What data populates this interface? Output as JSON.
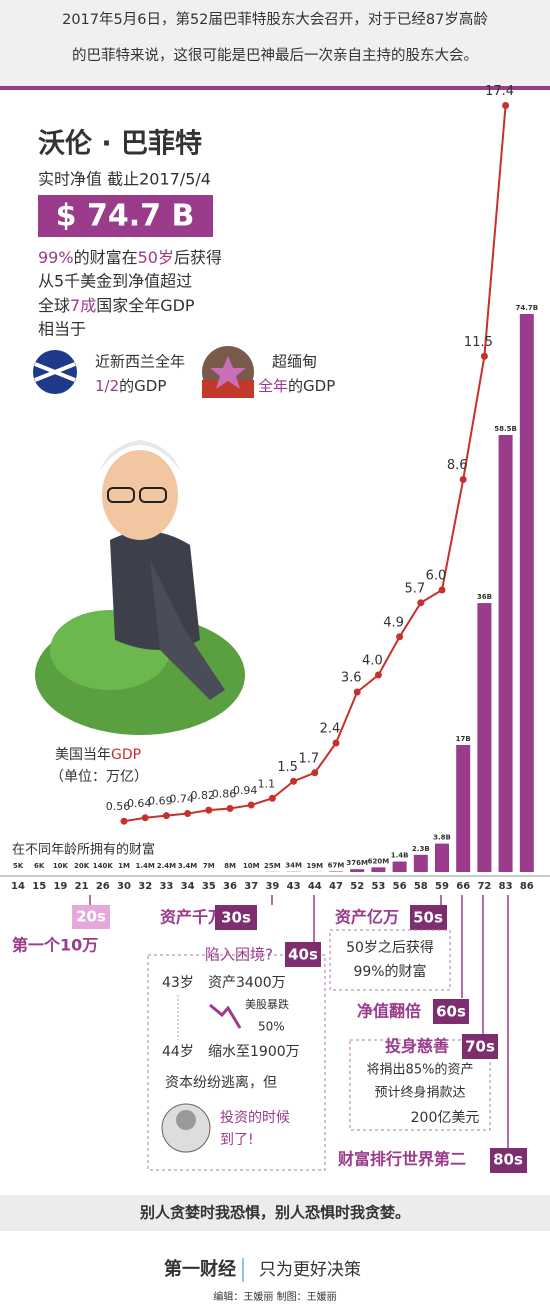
{
  "header": {
    "lines": [
      "2017年5月6日，第52届巴菲特股东大会召开，对于已经87岁高龄",
      "的巴菲特来说，这很可能是巴神最后一次亲自主持的股东大会。"
    ]
  },
  "profile": {
    "name": "沃伦 · 巴菲特",
    "subtitle": "实时净值 截止2017/5/4",
    "net_worth": "$ 74.7 B",
    "facts": [
      [
        "99%",
        "的财富在",
        "50岁",
        "后获得"
      ],
      [
        "从5千美金到净值超过"
      ],
      [
        "全球",
        "7成",
        "国家全年GDP"
      ],
      [
        "相当于"
      ]
    ],
    "comparisons": [
      {
        "line1": "近新西兰全年",
        "line2": [
          "1/2",
          "的GDP"
        ]
      },
      {
        "line1": "超缅甸",
        "line2": [
          "全年",
          "的GDP"
        ]
      }
    ]
  },
  "chart_data": {
    "type": "bar",
    "gdp_label": [
      "美国当年",
      "GDP"
    ],
    "gdp_unit": "（单位：万亿）",
    "wealth_label": "在不同年龄所拥有的财富",
    "categories": [
      14,
      15,
      19,
      21,
      26,
      30,
      32,
      33,
      34,
      35,
      36,
      37,
      39,
      43,
      44,
      47,
      52,
      53,
      56,
      58,
      59,
      66,
      72,
      83,
      86
    ],
    "series": [
      {
        "type": "bar",
        "color": "#9b3b8c",
        "values": [
          5000,
          6000,
          10000,
          20000,
          140000,
          1000000,
          1400000,
          2400000,
          3400000,
          7000000,
          8000000,
          10000000,
          25000000,
          34000000,
          19000000,
          67000000,
          376000000,
          620000000,
          1400000000,
          2300000000,
          3800000000,
          17000000000,
          36000000000,
          58500000000,
          74700000000
        ],
        "value_labels": [
          "5K",
          "6K",
          "10K",
          "20K",
          "140K",
          "1M",
          "1.4M",
          "2.4M",
          "3.4M",
          "7M",
          "8M",
          "10M",
          "25M",
          "34M",
          "19M",
          "67M",
          "376M",
          "620M",
          "1.4B",
          "2.3B",
          "3.8B",
          "17B",
          "36B",
          "58.5B",
          "74.7B"
        ]
      },
      {
        "type": "line",
        "color": "#c8312b",
        "values": [
          null,
          null,
          null,
          null,
          null,
          0.56,
          0.64,
          0.69,
          0.74,
          0.82,
          0.86,
          0.94,
          1.1,
          1.5,
          1.7,
          2.4,
          3.6,
          4.0,
          4.9,
          5.7,
          6.0,
          8.6,
          11.5,
          17.4,
          null
        ],
        "value_labels": [
          null,
          null,
          null,
          null,
          null,
          "0.56",
          "0.64",
          "0.69",
          "0.74",
          "0.82",
          "0.86",
          "0.94",
          "1.1",
          "1.5",
          "1.7",
          "2.4",
          "3.6",
          "4.0",
          "4.9",
          "5.7",
          "6.0",
          "8.6",
          "11.5",
          "17.4",
          null
        ]
      }
    ]
  },
  "milestones": [
    {
      "decade": "20s",
      "title": "第一个10万"
    },
    {
      "decade": "30s",
      "title": "资产千万"
    },
    {
      "decade": "40s",
      "title": "陷入困境?",
      "notes": [
        "43岁",
        "资产3400万",
        "美股暴跌",
        "50%",
        "44岁",
        "缩水至1900万",
        "资本纷纷逃离，但",
        "投资的时候",
        "到了!"
      ]
    },
    {
      "decade": "50s",
      "title": "资产亿万",
      "notes": [
        "50岁之后获得",
        "99%的财富"
      ]
    },
    {
      "decade": "60s",
      "title": "净值翻倍"
    },
    {
      "decade": "70s",
      "title": "投身慈善",
      "notes": [
        "将捐出85%的资产",
        "预计终身捐款达",
        "200亿美元"
      ]
    },
    {
      "decade": "80s",
      "title": "财富排行世界第二"
    }
  ],
  "footer": {
    "quote": "别人贪婪时我恐惧，别人恐惧时我贪婪。",
    "logo": "第一财经",
    "slogan": "只为更好决策",
    "credits": "编辑：王媛丽  制图：王媛丽"
  }
}
